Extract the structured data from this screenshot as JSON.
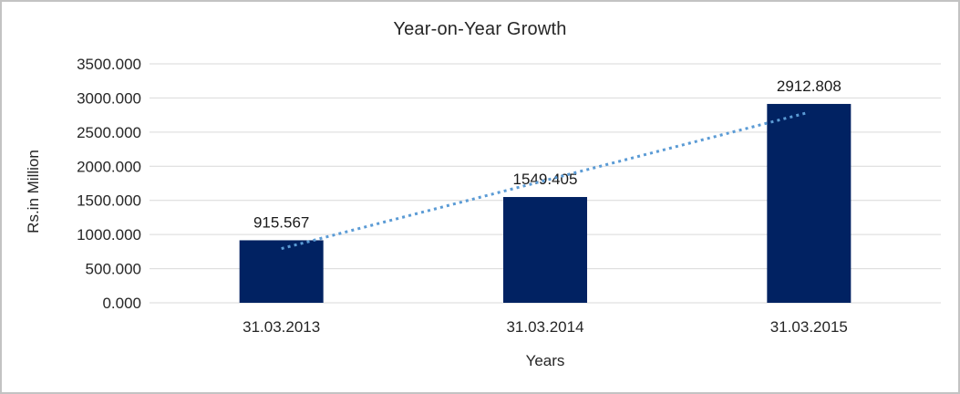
{
  "chart_data": {
    "type": "bar",
    "title": "Year-on-Year Growth",
    "xlabel": "Years",
    "ylabel": "Rs.in Million",
    "categories": [
      "31.03.2013",
      "31.03.2014",
      "31.03.2015"
    ],
    "values": [
      915.567,
      1549.405,
      2912.808
    ],
    "data_labels": [
      "915.567",
      "1549.405",
      "2912.808"
    ],
    "ylim": [
      0,
      3500
    ],
    "ytick_values": [
      0,
      500,
      1000,
      1500,
      2000,
      2500,
      3000,
      3500
    ],
    "ytick_labels": [
      "0.000",
      "500.000",
      "1000.000",
      "1500.000",
      "2000.000",
      "2500.000",
      "3000.000",
      "3500.000"
    ],
    "grid": true,
    "legend": false,
    "bar_color": "#012262",
    "gridline_color": "#d9d9d9",
    "text_color": "#262626",
    "trendline": {
      "style": "dotted",
      "color": "#5b9bd5",
      "start_value": 794,
      "end_value": 2790
    }
  }
}
